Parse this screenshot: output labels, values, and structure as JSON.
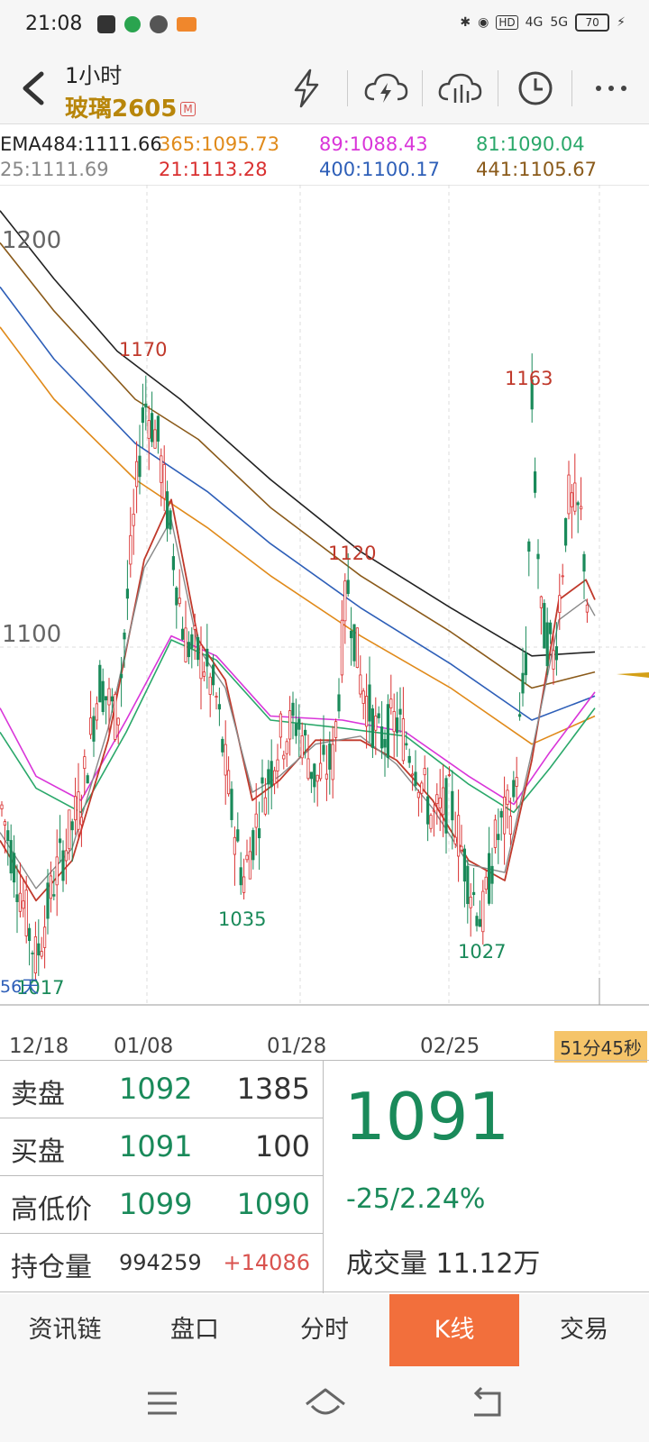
{
  "status_bar": {
    "time": "21:08",
    "network_hd": "HD",
    "net1": "4G",
    "net2": "5G",
    "battery": "70"
  },
  "header": {
    "period": "1小时",
    "symbol": "玻璃2605",
    "main_badge": "M"
  },
  "ema_row1": [
    {
      "label": "EMA484:1111.66",
      "color": "#222222"
    },
    {
      "label": "365:1095.73",
      "color": "#e08a1a"
    },
    {
      "label": "89:1088.43",
      "color": "#d935d9"
    },
    {
      "label": "81:1090.04",
      "color": "#2aa86a"
    }
  ],
  "ema_row2": [
    {
      "label": "25:1111.69",
      "color": "#888888"
    },
    {
      "label": "21:1113.28",
      "color": "#d93030"
    },
    {
      "label": "400:1100.17",
      "color": "#2e5fb8"
    },
    {
      "label": "441:1105.67",
      "color": "#8a5a1a"
    }
  ],
  "chart": {
    "y_labels": [
      "1200",
      "1100"
    ],
    "annotations": [
      {
        "text": "1170",
        "type": "high"
      },
      {
        "text": "1120",
        "type": "high"
      },
      {
        "text": "1163",
        "type": "high"
      },
      {
        "text": "1035",
        "type": "low"
      },
      {
        "text": "1027",
        "type": "low"
      },
      {
        "text": "1017",
        "type": "low"
      }
    ],
    "bottom_left_label": "56天",
    "x_labels": [
      "12/18",
      "01/08",
      "01/28",
      "02/25"
    ],
    "countdown": "51分45秒"
  },
  "quotes": {
    "ask": {
      "label": "卖盘",
      "price": "1092",
      "qty": "1385"
    },
    "bid": {
      "label": "买盘",
      "price": "1091",
      "qty": "100"
    },
    "hilo": {
      "label": "高低价",
      "high": "1099",
      "low": "1090"
    },
    "oi": {
      "label": "持仓量",
      "value": "994259",
      "change": "+14086"
    },
    "last": "1091",
    "change": "-25/2.24%",
    "volume_label": "成交量",
    "volume": "11.12万"
  },
  "tabs": [
    {
      "label": "资讯链",
      "active": false
    },
    {
      "label": "盘口",
      "active": false
    },
    {
      "label": "分时",
      "active": false
    },
    {
      "label": "K线",
      "active": true
    },
    {
      "label": "交易",
      "active": false
    }
  ]
}
